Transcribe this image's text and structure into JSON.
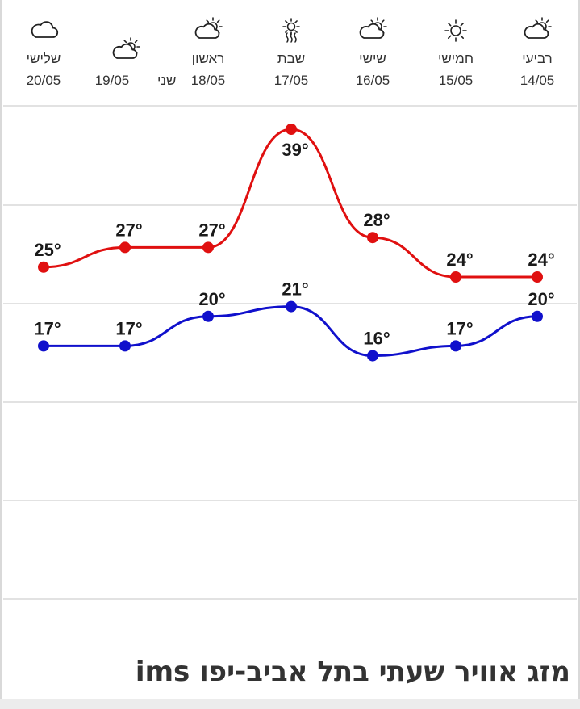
{
  "caption": "מזג אוויר שעתי בתל אביב-יפו ims",
  "colors": {
    "max_line": "#e01010",
    "min_line": "#1010cc",
    "grid": "#e2e2e2",
    "icon": "#222222"
  },
  "days": [
    {
      "name": "שלישי",
      "date": "20/05",
      "icon": "cloud-icon"
    },
    {
      "name": "שני",
      "date": "19/05",
      "icon": "sun-behind-cloud-icon"
    },
    {
      "name": "ראשון",
      "date": "18/05",
      "icon": "sun-behind-cloud-icon"
    },
    {
      "name": "שבת",
      "date": "17/05",
      "icon": "hot-sun-haze-icon"
    },
    {
      "name": "שישי",
      "date": "16/05",
      "icon": "sun-behind-cloud-icon"
    },
    {
      "name": "חמישי",
      "date": "15/05",
      "icon": "sun-icon"
    },
    {
      "name": "רביעי",
      "date": "14/05",
      "icon": "sun-behind-cloud-icon"
    }
  ],
  "chart_data": {
    "type": "line",
    "x": [
      "20/05",
      "19/05",
      "18/05",
      "17/05",
      "16/05",
      "15/05",
      "14/05"
    ],
    "series": [
      {
        "values": [
          25,
          27,
          27,
          39,
          28,
          24,
          24
        ],
        "labels": [
          "25°",
          "27°",
          "27°",
          "39°",
          "28°",
          "24°",
          "24°"
        ]
      },
      {
        "values": [
          17,
          17,
          20,
          21,
          16,
          17,
          20
        ],
        "labels": [
          "17°",
          "17°",
          "20°",
          "21°",
          "16°",
          "17°",
          "20°"
        ]
      }
    ],
    "grid": true
  }
}
